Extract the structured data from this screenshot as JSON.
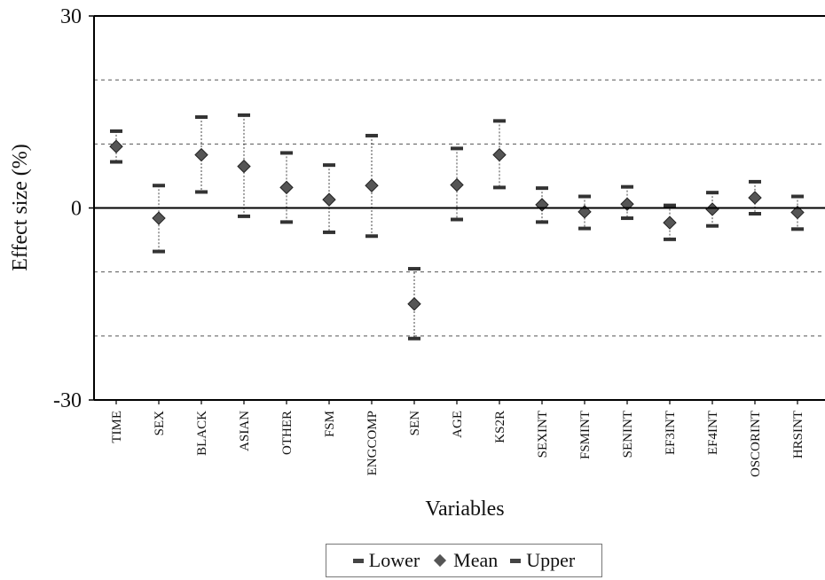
{
  "chart_data": {
    "type": "scatter",
    "xlabel": "Variables",
    "ylabel": "Effect size (%)",
    "ylim": [
      -30,
      30
    ],
    "y_tick_labels": [
      "30",
      "0",
      "-30"
    ],
    "gridlines": [
      20,
      10,
      -10,
      -20
    ],
    "categories": [
      "TIME",
      "SEX",
      "BLACK",
      "ASIAN",
      "OTHER",
      "FSM",
      "ENGCOMP",
      "SEN",
      "AGE",
      "KS2R",
      "SEXINT",
      "FSMINT",
      "SENINT",
      "EF3INT",
      "EF4INT",
      "OSCORINT",
      "HRSINT"
    ],
    "series": [
      {
        "name": "Lower",
        "values": [
          7.2,
          -6.8,
          2.5,
          -1.3,
          -2.2,
          -3.8,
          -4.4,
          -20.4,
          -1.8,
          3.2,
          -2.2,
          -3.2,
          -1.6,
          -4.9,
          -2.8,
          -0.9,
          -3.3
        ]
      },
      {
        "name": "Mean",
        "values": [
          9.6,
          -1.6,
          8.3,
          6.5,
          3.2,
          1.3,
          3.5,
          -15.0,
          3.6,
          8.3,
          0.5,
          -0.6,
          0.6,
          -2.3,
          -0.2,
          1.6,
          -0.7
        ]
      },
      {
        "name": "Upper",
        "values": [
          12.0,
          3.5,
          14.2,
          14.5,
          8.6,
          6.7,
          11.3,
          -9.5,
          9.3,
          13.6,
          3.1,
          1.8,
          3.3,
          0.4,
          2.4,
          4.1,
          1.8
        ]
      }
    ]
  }
}
